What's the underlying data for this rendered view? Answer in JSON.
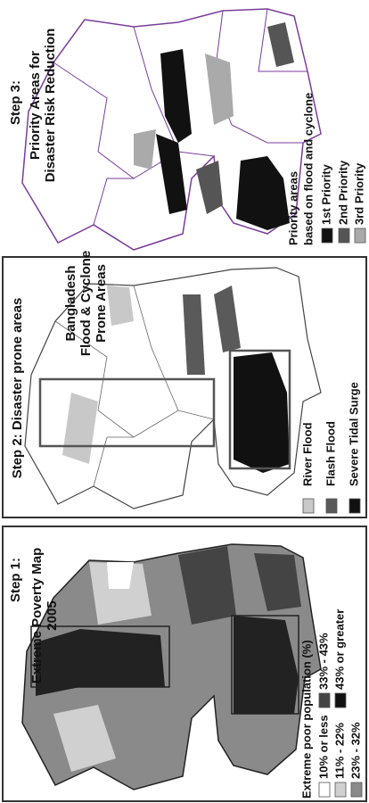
{
  "panels": [
    {
      "step": "Step 3:",
      "title": [
        "Priority Areas for",
        "Disaster Risk Reduction"
      ],
      "legend_title": [
        "Priority areas",
        "based on flood and cyclone"
      ],
      "legend": [
        {
          "label": "1st Priority",
          "color": "#111111"
        },
        {
          "label": "2nd Priority",
          "color": "#555555"
        },
        {
          "label": "3rd Priority",
          "color": "#aaaaaa"
        }
      ]
    },
    {
      "step": "Step 2: Disaster prone areas",
      "title": [
        "Bangladesh",
        "Flood & Cyclone",
        "Prone Areas"
      ],
      "legend_title": [],
      "legend": [
        {
          "label": "River Flood",
          "color": "#c8c8c8"
        },
        {
          "label": "Flash Flood",
          "color": "#5a5a5a"
        },
        {
          "label": "Severe Tidal Surge",
          "color": "#111111"
        }
      ]
    },
    {
      "step": "Step 1:",
      "title": [
        "Extreme Poverty Map",
        "2005"
      ],
      "legend_title": [
        "Extreme poor population (%)"
      ],
      "legend": [
        {
          "label": "10% or less",
          "color": "#ffffff"
        },
        {
          "label": "11% - 22%",
          "color": "#d0d0d0"
        },
        {
          "label": "23% - 32%",
          "color": "#8a8a8a"
        },
        {
          "label": "33% - 43%",
          "color": "#444444"
        },
        {
          "label": "43% or greater",
          "color": "#111111"
        }
      ]
    }
  ]
}
